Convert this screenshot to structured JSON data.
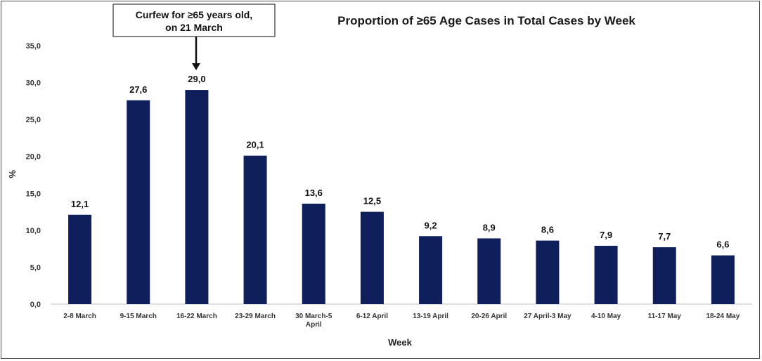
{
  "chart_data": {
    "type": "bar",
    "title": "Proportion of  ≥65 Age Cases in Total Cases by Week",
    "xlabel": "Week",
    "ylabel": "%",
    "ylim": [
      0,
      35
    ],
    "yticks": [
      "0,0",
      "5,0",
      "10,0",
      "15,0",
      "20,0",
      "25,0",
      "30,0",
      "35,0"
    ],
    "categories": [
      [
        "2-8 March"
      ],
      [
        "9-15 March"
      ],
      [
        "16-22 March"
      ],
      [
        "23-29 March"
      ],
      [
        "30 March-5",
        "April"
      ],
      [
        "6-12 April"
      ],
      [
        "13-19 April"
      ],
      [
        "20-26 April"
      ],
      [
        "27 April-3 May"
      ],
      [
        "4-10 May"
      ],
      [
        "11-17 May"
      ],
      [
        "18-24 May"
      ]
    ],
    "values": [
      12.1,
      27.6,
      29.0,
      20.1,
      13.6,
      12.5,
      9.2,
      8.9,
      8.6,
      7.9,
      7.7,
      6.6
    ],
    "value_labels": [
      "12,1",
      "27,6",
      "29,0",
      "20,1",
      "13,6",
      "12,5",
      "9,2",
      "8,9",
      "8,6",
      "7,9",
      "7,7",
      "6,6"
    ],
    "bar_color": "#0e1f5b",
    "annotation": {
      "lines": [
        "Curfew for ≥65 years old,",
        "on 21 March"
      ],
      "target_category_index": 2
    }
  }
}
